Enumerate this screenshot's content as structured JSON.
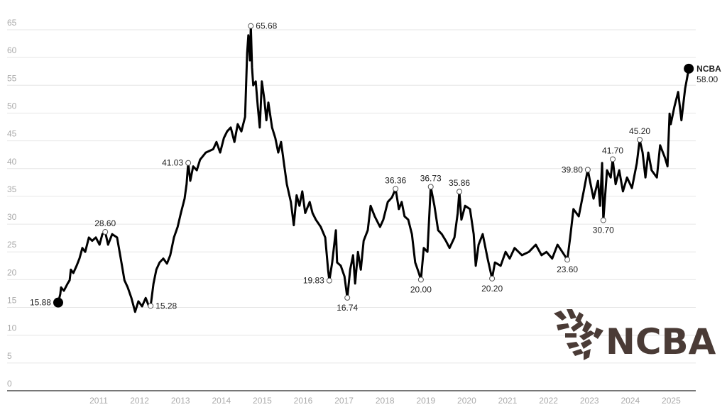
{
  "chart_data": {
    "type": "line",
    "title": "",
    "xlabel": "",
    "ylabel": "",
    "ylim": [
      0,
      65
    ],
    "yticks": [
      0,
      5,
      10,
      15,
      20,
      25,
      30,
      35,
      40,
      45,
      50,
      55,
      60,
      65
    ],
    "xticks": [
      "2011",
      "2012",
      "2013",
      "2014",
      "2015",
      "2016",
      "2017",
      "2018",
      "2019",
      "2020",
      "2021",
      "2022",
      "2023",
      "2024",
      "2025"
    ],
    "grid": true,
    "series": [
      {
        "name": "NCBA",
        "color": "#000000",
        "x": [
          2010.01,
          2010.06,
          2010.08,
          2010.15,
          2010.24,
          2010.29,
          2010.32,
          2010.38,
          2010.46,
          2010.53,
          2010.6,
          2010.67,
          2010.76,
          2010.84,
          2010.93,
          2011.02,
          2011.09,
          2011.16,
          2011.23,
          2011.33,
          2011.45,
          2011.54,
          2011.63,
          2011.71,
          2011.8,
          2011.89,
          2011.97,
          2012.06,
          2012.15,
          2012.23,
          2012.27,
          2012.34,
          2012.41,
          2012.49,
          2012.58,
          2012.67,
          2012.75,
          2012.84,
          2012.93,
          2013.01,
          2013.1,
          2013.15,
          2013.19,
          2013.24,
          2013.31,
          2013.4,
          2013.48,
          2013.62,
          2013.8,
          2013.88,
          2013.97,
          2014.06,
          2014.14,
          2014.23,
          2014.32,
          2014.4,
          2014.49,
          2014.58,
          2014.63,
          2014.66,
          2014.7,
          2014.72,
          2014.75,
          2014.78,
          2014.84,
          2014.89,
          2014.94,
          2014.99,
          2015.05,
          2015.1,
          2015.15,
          2015.24,
          2015.32,
          2015.39,
          2015.46,
          2015.53,
          2015.6,
          2015.7,
          2015.77,
          2015.84,
          2015.91,
          2015.98,
          2016.05,
          2016.16,
          2016.23,
          2016.31,
          2016.43,
          2016.54,
          2016.61,
          2016.64,
          2016.71,
          2016.8,
          2016.83,
          2016.92,
          2017.01,
          2017.08,
          2017.15,
          2017.22,
          2017.27,
          2017.34,
          2017.41,
          2017.48,
          2017.58,
          2017.65,
          2017.75,
          2017.88,
          2017.96,
          2018.07,
          2018.17,
          2018.26,
          2018.34,
          2018.41,
          2018.48,
          2018.57,
          2018.66,
          2018.74,
          2018.83,
          2018.88,
          2018.95,
          2019.04,
          2019.12,
          2019.21,
          2019.3,
          2019.39,
          2019.49,
          2019.58,
          2019.7,
          2019.78,
          2019.82,
          2019.87,
          2019.96,
          2020.08,
          2020.17,
          2020.22,
          2020.29,
          2020.39,
          2020.51,
          2020.62,
          2020.69,
          2020.83,
          2020.95,
          2021.05,
          2021.17,
          2021.35,
          2021.52,
          2021.69,
          2021.83,
          2021.95,
          2022.09,
          2022.22,
          2022.39,
          2022.46,
          2022.53,
          2022.61,
          2022.74,
          2022.86,
          2022.96,
          2023.03,
          2023.1,
          2023.21,
          2023.26,
          2023.31,
          2023.34,
          2023.43,
          2023.52,
          2023.57,
          2023.64,
          2023.73,
          2023.82,
          2023.92,
          2024.04,
          2024.16,
          2024.23,
          2024.3,
          2024.37,
          2024.44,
          2024.52,
          2024.65,
          2024.73,
          2024.85,
          2024.91,
          2024.96,
          2024.99,
          2025.08,
          2025.17,
          2025.25,
          2025.34,
          2025.43
        ],
        "y": [
          15.88,
          17.4,
          18.6,
          18.0,
          19.3,
          19.9,
          21.8,
          21.2,
          22.5,
          23.8,
          25.7,
          25.0,
          27.6,
          27.0,
          27.6,
          26.3,
          28.2,
          28.6,
          26.3,
          28.2,
          27.6,
          23.8,
          19.9,
          18.6,
          16.7,
          14.2,
          16.1,
          15.2,
          16.7,
          15.2,
          15.28,
          19.3,
          21.8,
          23.1,
          23.8,
          22.9,
          24.4,
          27.6,
          29.5,
          32.0,
          34.6,
          37.2,
          41.03,
          37.8,
          40.4,
          39.7,
          41.6,
          42.9,
          43.5,
          44.8,
          42.9,
          45.5,
          46.7,
          47.4,
          44.8,
          48.0,
          46.7,
          49.3,
          60.8,
          64.0,
          59.5,
          65.68,
          58.2,
          55.0,
          55.7,
          51.2,
          47.4,
          55.7,
          52.5,
          48.7,
          51.9,
          47.4,
          45.5,
          42.9,
          44.8,
          41.0,
          37.2,
          34.0,
          29.8,
          35.2,
          33.3,
          35.9,
          32.0,
          34.0,
          32.0,
          30.8,
          29.5,
          27.6,
          21.8,
          19.83,
          23.1,
          28.9,
          23.1,
          22.5,
          20.6,
          16.74,
          21.8,
          24.4,
          19.3,
          25.0,
          21.8,
          27.0,
          28.9,
          33.3,
          31.4,
          29.5,
          30.8,
          34.0,
          34.8,
          36.36,
          32.7,
          34.0,
          31.4,
          30.8,
          28.2,
          23.1,
          21.2,
          20.0,
          25.7,
          25.0,
          36.73,
          33.3,
          28.9,
          28.2,
          27.0,
          25.7,
          27.6,
          32.0,
          35.86,
          30.8,
          33.3,
          32.7,
          28.2,
          22.5,
          26.3,
          28.2,
          23.8,
          20.2,
          23.1,
          22.5,
          25.0,
          23.8,
          25.7,
          24.4,
          25.0,
          26.3,
          24.4,
          25.0,
          23.8,
          26.3,
          24.4,
          23.6,
          27.6,
          32.7,
          31.4,
          35.9,
          39.8,
          37.2,
          34.6,
          37.8,
          33.3,
          41.0,
          30.7,
          39.7,
          38.4,
          41.7,
          37.2,
          39.7,
          35.9,
          38.4,
          36.5,
          41.0,
          45.2,
          42.9,
          38.4,
          42.9,
          39.7,
          38.4,
          44.2,
          41.9,
          40.4,
          49.9,
          48.0,
          51.2,
          53.8,
          48.7,
          54.4,
          58.0
        ]
      }
    ],
    "annotations": [
      {
        "x": 2010.01,
        "value": 15.88,
        "label": "15.88",
        "pos": "left",
        "style": "start"
      },
      {
        "x": 2011.16,
        "value": 28.6,
        "label": "28.60",
        "pos": "above"
      },
      {
        "x": 2012.27,
        "value": 15.28,
        "label": "15.28",
        "pos": "right"
      },
      {
        "x": 2013.19,
        "value": 41.03,
        "label": "41.03",
        "pos": "left"
      },
      {
        "x": 2014.72,
        "value": 65.68,
        "label": "65.68",
        "pos": "right"
      },
      {
        "x": 2016.64,
        "value": 19.83,
        "label": "19.83",
        "pos": "left"
      },
      {
        "x": 2017.08,
        "value": 16.74,
        "label": "16.74",
        "pos": "below"
      },
      {
        "x": 2018.26,
        "value": 36.36,
        "label": "36.36",
        "pos": "above"
      },
      {
        "x": 2018.88,
        "value": 20.0,
        "label": "20.00",
        "pos": "below"
      },
      {
        "x": 2019.12,
        "value": 36.73,
        "label": "36.73",
        "pos": "above"
      },
      {
        "x": 2019.82,
        "value": 35.86,
        "label": "35.86",
        "pos": "above"
      },
      {
        "x": 2020.62,
        "value": 20.2,
        "label": "20.20",
        "pos": "below"
      },
      {
        "x": 2022.46,
        "value": 23.6,
        "label": "23.60",
        "pos": "below"
      },
      {
        "x": 2022.96,
        "value": 39.8,
        "label": "39.80",
        "pos": "left"
      },
      {
        "x": 2023.34,
        "value": 30.7,
        "label": "30.70",
        "pos": "below"
      },
      {
        "x": 2023.57,
        "value": 41.7,
        "label": "41.70",
        "pos": "above"
      },
      {
        "x": 2024.23,
        "value": 45.2,
        "label": "45.20",
        "pos": "above"
      },
      {
        "x": 2025.43,
        "value": 58.0,
        "label": "58.00",
        "pos": "end",
        "style": "end",
        "name": "NCBA"
      }
    ]
  },
  "logo": {
    "text": "NCBA",
    "color": "#4a3b36"
  }
}
